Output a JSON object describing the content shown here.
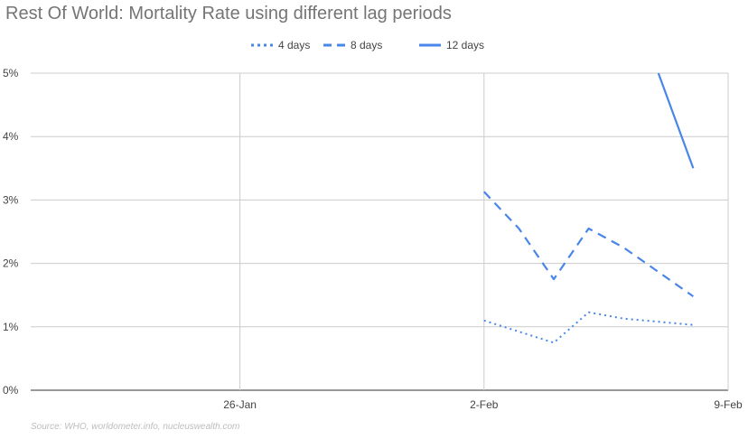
{
  "chart_data": {
    "type": "line",
    "title": "Rest Of World: Mortality Rate using different lag periods",
    "source": "Source: WHO, worldometer.info, nucleuswealth.com",
    "x_ticks": [
      "26-Jan",
      "2-Feb",
      "9-Feb"
    ],
    "y_ticks": [
      "0%",
      "1%",
      "2%",
      "3%",
      "4%",
      "5%"
    ],
    "ylim": [
      0,
      5
    ],
    "xlim": [
      "2020-01-20",
      "2020-02-09"
    ],
    "grid": true,
    "legend_position": "top",
    "series": [
      {
        "name": "4 days",
        "dash": "dotted",
        "color": "#4a86e8",
        "points": [
          {
            "x": "2020-02-02",
            "y": 1.1
          },
          {
            "x": "2020-02-04",
            "y": 0.75
          },
          {
            "x": "2020-02-05",
            "y": 1.23
          },
          {
            "x": "2020-02-06",
            "y": 1.13
          },
          {
            "x": "2020-02-08",
            "y": 1.03
          }
        ]
      },
      {
        "name": "8 days",
        "dash": "dashed",
        "color": "#4a86e8",
        "points": [
          {
            "x": "2020-02-02",
            "y": 3.13
          },
          {
            "x": "2020-02-03",
            "y": 2.55
          },
          {
            "x": "2020-02-04",
            "y": 1.75
          },
          {
            "x": "2020-02-05",
            "y": 2.55
          },
          {
            "x": "2020-02-06",
            "y": 2.25
          },
          {
            "x": "2020-02-08",
            "y": 1.48
          }
        ]
      },
      {
        "name": "12 days",
        "dash": "solid",
        "color": "#4a86e8",
        "points": [
          {
            "x": "2020-02-07",
            "y": 5.0
          },
          {
            "x": "2020-02-08",
            "y": 3.5
          }
        ]
      }
    ]
  }
}
